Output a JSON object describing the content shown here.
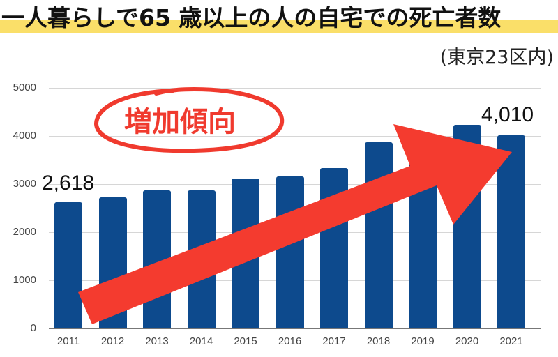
{
  "header": {
    "title": "一人暮らしで65 歳以上の人の自宅での死亡者数",
    "subtitle": "(東京23区内)",
    "highlight_color": "#fadf69"
  },
  "annotation": {
    "label": "増加傾向",
    "color": "#f03a2e"
  },
  "data_labels": {
    "first": "2,618",
    "last": "4,010"
  },
  "colors": {
    "bar": "#0d4a8d",
    "arrow": "#f43b2f",
    "grid": "#d6d6d6"
  },
  "yaxis": {
    "ticks": [
      "5000",
      "4000",
      "3000",
      "2000",
      "1000",
      "0"
    ]
  },
  "xaxis": {
    "ticks": [
      "2011",
      "2012",
      "2013",
      "2014",
      "2015",
      "2016",
      "2017",
      "2018",
      "2019",
      "2020",
      "2021"
    ]
  },
  "chart_data": {
    "type": "bar",
    "title": "一人暮らしで65 歳以上の人の自宅での死亡者数",
    "subtitle": "(東京23区内)",
    "categories": [
      "2011",
      "2012",
      "2013",
      "2014",
      "2015",
      "2016",
      "2017",
      "2018",
      "2019",
      "2020",
      "2021"
    ],
    "values": [
      2618,
      2730,
      2870,
      2870,
      3120,
      3160,
      3330,
      3870,
      3910,
      4230,
      4010
    ],
    "xlabel": "",
    "ylabel": "",
    "ylim": [
      0,
      5000
    ],
    "yticks": [
      0,
      1000,
      2000,
      3000,
      4000,
      5000
    ],
    "grid": true,
    "legend": null,
    "annotations": [
      {
        "text": "2,618",
        "target": "2011"
      },
      {
        "text": "4,010",
        "target": "2021"
      },
      {
        "text": "増加傾向",
        "type": "circled-label"
      },
      {
        "type": "arrow",
        "direction": "up-right",
        "from": "2011",
        "to": "2021"
      }
    ]
  }
}
